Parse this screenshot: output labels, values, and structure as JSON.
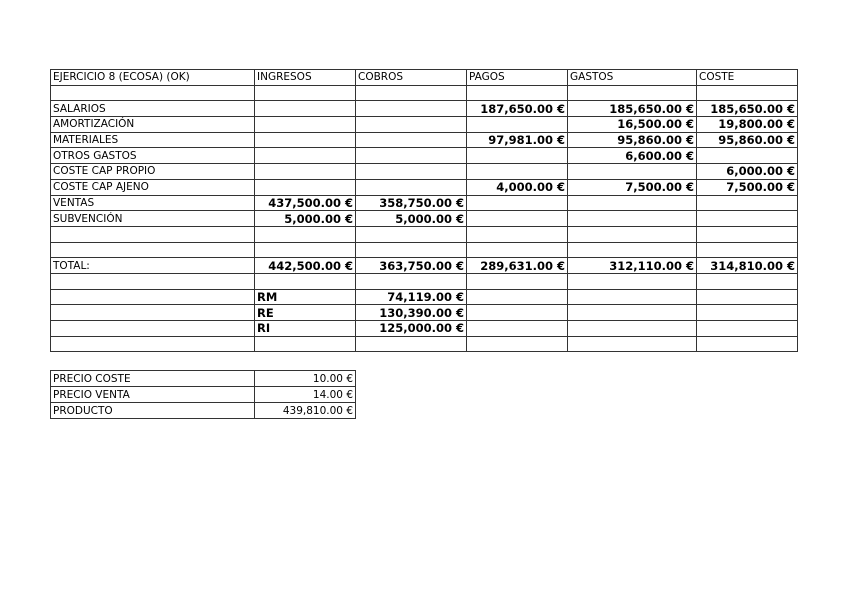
{
  "main_table": {
    "headers": [
      "EJERCICIO 8 (ECOSA) (OK)",
      "INGRESOS",
      "COBROS",
      "PAGOS",
      "GASTOS",
      "COSTE"
    ],
    "rows": [
      [
        "",
        "",
        "",
        "",
        "",
        ""
      ],
      [
        "SALARIOS",
        "",
        "",
        "187,650.00 €",
        "185,650.00 €",
        "185,650.00 €"
      ],
      [
        "AMORTIZACIÓN",
        "",
        "",
        "",
        "16,500.00 €",
        "19,800.00 €"
      ],
      [
        "MATERIALES",
        "",
        "",
        "97,981.00 €",
        "95,860.00 €",
        "95,860.00 €"
      ],
      [
        "OTROS GASTOS",
        "",
        "",
        "",
        "6,600.00 €",
        ""
      ],
      [
        "COSTE CAP PROPIO",
        "",
        "",
        "",
        "",
        "6,000.00 €"
      ],
      [
        "COSTE CAP AJENO",
        "",
        "",
        "4,000.00 €",
        "7,500.00 €",
        "7,500.00 €"
      ],
      [
        "VENTAS",
        "437,500.00 €",
        "358,750.00 €",
        "",
        "",
        ""
      ],
      [
        "SUBVENCIÓN",
        "5,000.00 €",
        "5,000.00 €",
        "",
        "",
        ""
      ],
      [
        "",
        "",
        "",
        "",
        "",
        ""
      ],
      [
        "",
        "",
        "",
        "",
        "",
        ""
      ],
      [
        "TOTAL:",
        "442,500.00 €",
        "363,750.00 €",
        "289,631.00 €",
        "312,110.00 €",
        "314,810.00 €"
      ],
      [
        "",
        "",
        "",
        "",
        "",
        ""
      ],
      [
        "",
        "RM",
        "74,119.00 €",
        "",
        "",
        ""
      ],
      [
        "",
        "RE",
        "130,390.00 €",
        "",
        "",
        ""
      ],
      [
        "",
        "RI",
        "125,000.00 €",
        "",
        "",
        ""
      ],
      [
        "",
        "",
        "",
        "",
        "",
        ""
      ]
    ]
  },
  "price_table": {
    "rows": [
      [
        "PRECIO COSTE",
        "10.00 €"
      ],
      [
        "PRECIO VENTA",
        "14.00 €"
      ],
      [
        "PRODUCTO",
        "439,810.00 €"
      ]
    ]
  }
}
